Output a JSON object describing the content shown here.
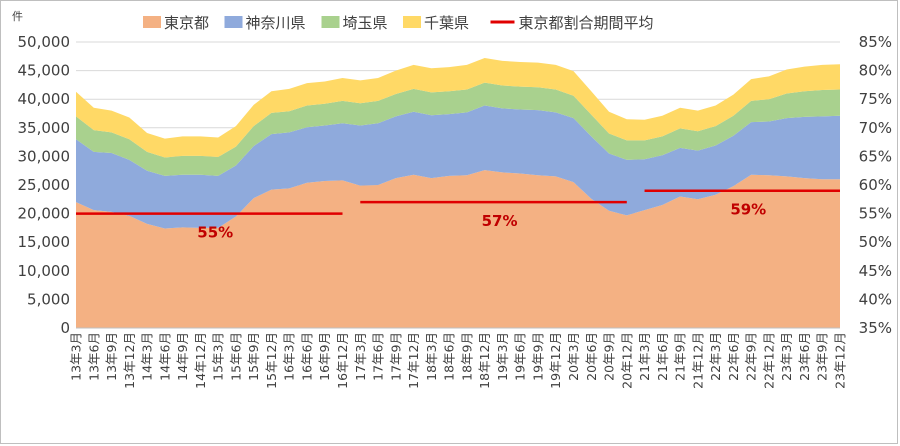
{
  "chart_data": {
    "type": "area",
    "stacked": true,
    "y_unit_label": "件",
    "ylim": [
      0,
      50000
    ],
    "yticks": [
      "0",
      "5,000",
      "10,000",
      "15,000",
      "20,000",
      "25,000",
      "30,000",
      "35,000",
      "40,000",
      "45,000",
      "50,000"
    ],
    "y2lim": [
      35,
      85
    ],
    "y2ticks": [
      "35%",
      "40%",
      "45%",
      "50%",
      "55%",
      "60%",
      "65%",
      "70%",
      "75%",
      "80%",
      "85%"
    ],
    "grid": "horizontal",
    "legend_position": "top",
    "x_labels": [
      "13年3月",
      "13年6月",
      "13年9月",
      "13年12月",
      "14年3月",
      "14年6月",
      "14年9月",
      "14年12月",
      "15年3月",
      "15年6月",
      "15年9月",
      "15年12月",
      "16年3月",
      "16年6月",
      "16年9月",
      "16年12月",
      "17年3月",
      "17年6月",
      "17年9月",
      "17年12月",
      "18年3月",
      "18年6月",
      "18年9月",
      "18年12月",
      "19年3月",
      "19年6月",
      "19年9月",
      "19年12月",
      "20年3月",
      "20年6月",
      "20年9月",
      "20年12月",
      "21年3月",
      "21年6月",
      "21年9月",
      "21年12月",
      "22年3月",
      "22年6月",
      "22年9月",
      "22年12月",
      "23年3月",
      "23年6月",
      "23年9月",
      "23年12月"
    ],
    "series": [
      {
        "name": "東京都",
        "color": "#f4b183",
        "values": [
          22000,
          20600,
          20300,
          19600,
          18200,
          17400,
          17600,
          17500,
          17500,
          19500,
          22700,
          24200,
          24400,
          25400,
          25700,
          25800,
          24900,
          25000,
          26200,
          26800,
          26200,
          26600,
          26700,
          27600,
          27200,
          27000,
          26700,
          26500,
          25500,
          22600,
          20500,
          19700,
          20600,
          21500,
          23000,
          22500,
          23300,
          24800,
          26800,
          26700,
          26500,
          26200,
          26000,
          26000
        ]
      },
      {
        "name": "神奈川県",
        "color": "#8faadc",
        "values": [
          11000,
          10200,
          10300,
          9800,
          9300,
          9200,
          9200,
          9300,
          9100,
          8900,
          9100,
          9700,
          9800,
          9700,
          9700,
          10000,
          10500,
          10800,
          10800,
          11000,
          11000,
          10800,
          11000,
          11300,
          11200,
          11200,
          11400,
          11200,
          11200,
          10900,
          10000,
          9700,
          8900,
          8700,
          8500,
          8500,
          8600,
          8800,
          9200,
          9400,
          10200,
          10700,
          11000,
          11100
        ]
      },
      {
        "name": "埼玉県",
        "color": "#a9d18e",
        "values": [
          4000,
          3800,
          3600,
          3600,
          3300,
          3200,
          3300,
          3300,
          3300,
          3300,
          3500,
          3700,
          3700,
          3800,
          3800,
          3900,
          3900,
          3900,
          3900,
          4000,
          4000,
          4000,
          4000,
          4000,
          4000,
          4000,
          4000,
          4000,
          3900,
          3800,
          3500,
          3400,
          3300,
          3300,
          3400,
          3400,
          3400,
          3500,
          3700,
          3900,
          4300,
          4500,
          4600,
          4600
        ]
      },
      {
        "name": "千葉県",
        "color": "#ffd966",
        "values": [
          4300,
          3900,
          3800,
          3800,
          3300,
          3300,
          3400,
          3400,
          3400,
          3600,
          3700,
          3800,
          3900,
          3900,
          3900,
          4000,
          4000,
          4000,
          4100,
          4200,
          4200,
          4200,
          4300,
          4300,
          4300,
          4300,
          4300,
          4300,
          4300,
          4100,
          3800,
          3700,
          3600,
          3600,
          3600,
          3600,
          3600,
          3700,
          3800,
          4000,
          4200,
          4300,
          4400,
          4400
        ]
      }
    ],
    "average_series": {
      "name": "東京都割合期間平均",
      "color": "#e00000",
      "segments": [
        {
          "start": "13年3月",
          "end": "16年12月",
          "value_percent": 55,
          "label": "55%"
        },
        {
          "start": "17年3月",
          "end": "20年12月",
          "value_percent": 57,
          "label": "57%"
        },
        {
          "start": "21年3月",
          "end": "23年12月",
          "value_percent": 59,
          "label": "59%"
        }
      ]
    }
  }
}
